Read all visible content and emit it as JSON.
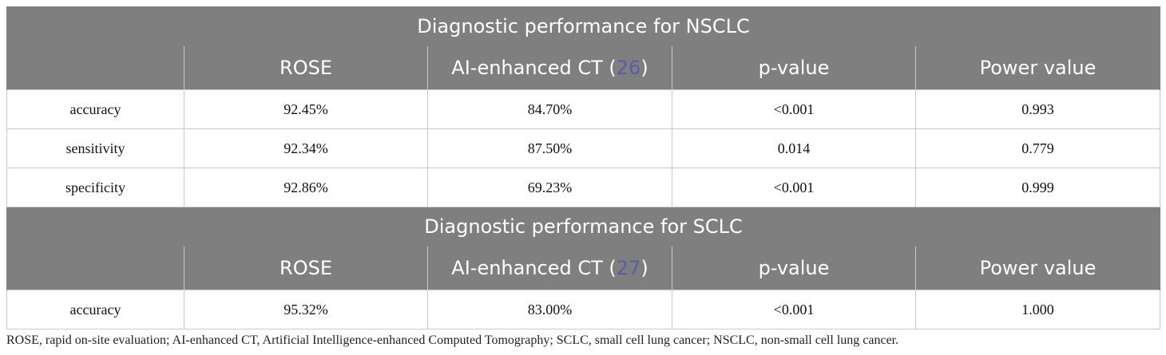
{
  "nsclc": {
    "title": "Diagnostic performance for NSCLC",
    "headers": {
      "metric": "",
      "rose": "ROSE",
      "ai_prefix": "AI-enhanced CT (",
      "ai_ref": "26",
      "ai_suffix": ")",
      "p": "p-value",
      "power": "Power value"
    },
    "rows": [
      {
        "metric": "accuracy",
        "rose": "92.45%",
        "ai": "84.70%",
        "p": "<0.001",
        "power": "0.993"
      },
      {
        "metric": "sensitivity",
        "rose": "92.34%",
        "ai": "87.50%",
        "p": "0.014",
        "power": "0.779"
      },
      {
        "metric": "specificity",
        "rose": "92.86%",
        "ai": "69.23%",
        "p": "<0.001",
        "power": "0.999"
      }
    ]
  },
  "sclc": {
    "title": "Diagnostic performance for SCLC",
    "headers": {
      "metric": "",
      "rose": "ROSE",
      "ai_prefix": "AI-enhanced CT (",
      "ai_ref": "27",
      "ai_suffix": ")",
      "p": "p-value",
      "power": "Power value"
    },
    "rows": [
      {
        "metric": "accuracy",
        "rose": "95.32%",
        "ai": "83.00%",
        "p": "<0.001",
        "power": "1.000"
      }
    ]
  },
  "footnote": "ROSE, rapid on-site evaluation; AI-enhanced CT, Artificial Intelligence-enhanced Computed Tomography; SCLC, small cell lung cancer; NSCLC, non-small cell lung cancer.",
  "colors": {
    "header_bg": "#7f7f7f",
    "header_text": "#ffffff",
    "ref_link": "#5b5ba8",
    "grid": "#c9c9c9"
  }
}
